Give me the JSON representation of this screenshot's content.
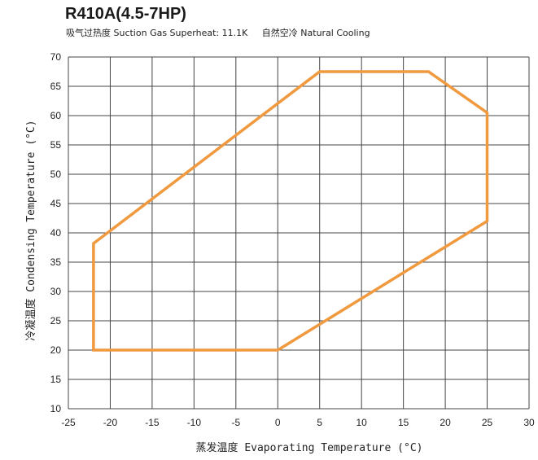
{
  "header": {
    "title": "R410A(4.5-7HP)",
    "superheat_label": "吸气过热度 Suction Gas Superheat: 11.1K",
    "cooling_label": "自然空冷 Natural Cooling"
  },
  "colors": {
    "envelope": "#F0993E",
    "grid": "#444444",
    "text": "#222222"
  },
  "chart_data": {
    "type": "line",
    "title": "R410A(4.5-7HP)",
    "subtitle": "吸气过热度 Suction Gas Superheat: 11.1K    自然空冷 Natural Cooling",
    "xlabel": "蒸发温度 Evaporating Temperature (°C)",
    "ylabel": "冷凝温度 Condensing Temperature (°C)",
    "xlim": [
      -25,
      30
    ],
    "ylim": [
      10,
      70
    ],
    "xticks": [
      -25,
      -20,
      -15,
      -10,
      -5,
      0,
      5,
      10,
      15,
      20,
      25,
      30
    ],
    "yticks": [
      10,
      15,
      20,
      25,
      30,
      35,
      40,
      45,
      50,
      55,
      60,
      65,
      70
    ],
    "grid": true,
    "series": [
      {
        "closed": true,
        "color": "#F0993E",
        "points": [
          [
            -22,
            38.2
          ],
          [
            5,
            67.5
          ],
          [
            18,
            67.5
          ],
          [
            25,
            60.5
          ],
          [
            25,
            42
          ],
          [
            0,
            20
          ],
          [
            -22,
            20
          ]
        ]
      }
    ]
  }
}
